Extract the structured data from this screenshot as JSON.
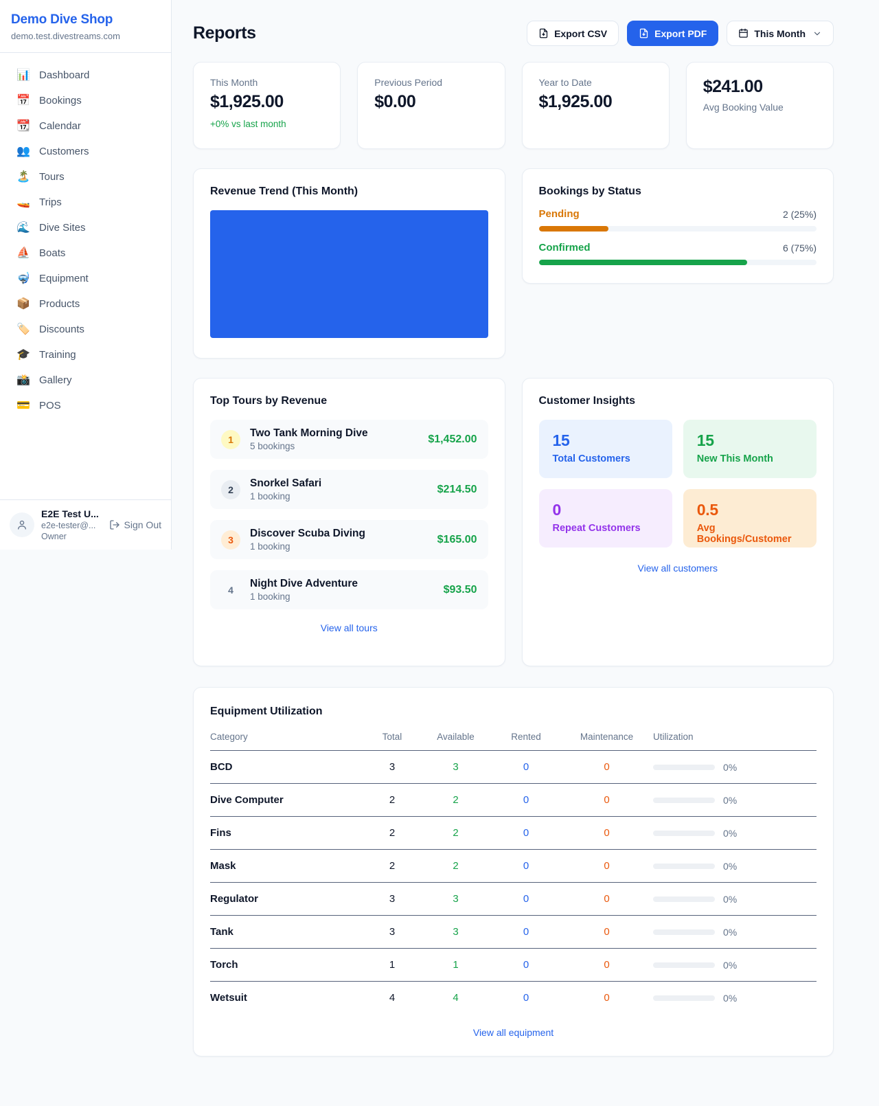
{
  "app": {
    "background": "#f8fafc",
    "accent": "#2563eb"
  },
  "sidebar": {
    "shop_name": "Demo Dive Shop",
    "shop_domain": "demo.test.divestreams.com",
    "items": [
      {
        "icon": "📊",
        "icon_name": "bar-chart-icon",
        "label": "Dashboard"
      },
      {
        "icon": "📅",
        "icon_name": "calendar-date-icon",
        "label": "Bookings"
      },
      {
        "icon": "📆",
        "icon_name": "tear-off-calendar-icon",
        "label": "Calendar"
      },
      {
        "icon": "👥",
        "icon_name": "people-icon",
        "label": "Customers"
      },
      {
        "icon": "🏝️",
        "icon_name": "island-icon",
        "label": "Tours"
      },
      {
        "icon": "🚤",
        "icon_name": "speedboat-icon",
        "label": "Trips"
      },
      {
        "icon": "🌊",
        "icon_name": "wave-icon",
        "label": "Dive Sites"
      },
      {
        "icon": "⛵",
        "icon_name": "sailboat-icon",
        "label": "Boats"
      },
      {
        "icon": "🤿",
        "icon_name": "diving-mask-icon",
        "label": "Equipment"
      },
      {
        "icon": "📦",
        "icon_name": "package-icon",
        "label": "Products"
      },
      {
        "icon": "🏷️",
        "icon_name": "tag-icon",
        "label": "Discounts"
      },
      {
        "icon": "🎓",
        "icon_name": "graduation-cap-icon",
        "label": "Training"
      },
      {
        "icon": "📸",
        "icon_name": "camera-icon",
        "label": "Gallery"
      },
      {
        "icon": "💳",
        "icon_name": "credit-card-icon",
        "label": "POS"
      }
    ],
    "user": {
      "name": "E2E Test U...",
      "email": "e2e-tester@...",
      "role": "Owner",
      "sign_out_label": "Sign Out"
    }
  },
  "header": {
    "title": "Reports",
    "export_csv_label": "Export CSV",
    "export_pdf_label": "Export PDF",
    "period_label": "This Month"
  },
  "stats": [
    {
      "label": "This Month",
      "value": "$1,925.00",
      "delta": "+0% vs last month"
    },
    {
      "label": "Previous Period",
      "value": "$0.00"
    },
    {
      "label": "Year to Date",
      "value": "$1,925.00"
    },
    {
      "label": "Avg Booking Value",
      "value": "$241.00",
      "value_first": true
    }
  ],
  "revenue_trend": {
    "title": "Revenue Trend (This Month)",
    "bar_color": "#2563eb"
  },
  "bookings_by_status": {
    "title": "Bookings by Status",
    "statuses": [
      {
        "label": "Pending",
        "count_text": "2 (25%)",
        "percent": 25,
        "color": "#d97706"
      },
      {
        "label": "Confirmed",
        "count_text": "6 (75%)",
        "percent": 75,
        "color": "#16a34a"
      }
    ]
  },
  "top_tours": {
    "title": "Top Tours by Revenue",
    "view_all_label": "View all tours",
    "tours": [
      {
        "rank": "1",
        "name": "Two Tank Morning Dive",
        "bookings": "5 bookings",
        "revenue": "$1,452.00",
        "badge_bg": "#fef9c3",
        "badge_color": "#d97706"
      },
      {
        "rank": "2",
        "name": "Snorkel Safari",
        "bookings": "1 booking",
        "revenue": "$214.50",
        "badge_bg": "#e9edf2",
        "badge_color": "#334155"
      },
      {
        "rank": "3",
        "name": "Discover Scuba Diving",
        "bookings": "1 booking",
        "revenue": "$165.00",
        "badge_bg": "#ffedd5",
        "badge_color": "#ea580c"
      },
      {
        "rank": "4",
        "name": "Night Dive Adventure",
        "bookings": "1 booking",
        "revenue": "$93.50",
        "badge_bg": "transparent",
        "badge_color": "#64748b"
      }
    ]
  },
  "customer_insights": {
    "title": "Customer Insights",
    "view_all_label": "View all customers",
    "tiles": [
      {
        "value": "15",
        "label": "Total Customers",
        "bg": "#eaf2fe",
        "color": "#2563eb"
      },
      {
        "value": "15",
        "label": "New This Month",
        "bg": "#e8f8ee",
        "color": "#16a34a"
      },
      {
        "value": "0",
        "label": "Repeat Customers",
        "bg": "#f6edfe",
        "color": "#9333ea"
      },
      {
        "value": "0.5",
        "label": "Avg Bookings/Customer",
        "bg": "#fdecd3",
        "color": "#ea580c"
      }
    ]
  },
  "equipment": {
    "title": "Equipment Utilization",
    "view_all_label": "View all equipment",
    "columns": [
      "Category",
      "Total",
      "Available",
      "Rented",
      "Maintenance",
      "Utilization"
    ],
    "value_colors": {
      "total": "#0f172a",
      "available": "#16a34a",
      "rented": "#2563eb",
      "maintenance": "#ea580c"
    },
    "rows": [
      {
        "category": "BCD",
        "total": "3",
        "available": "3",
        "rented": "0",
        "maintenance": "0",
        "utilization": "0%",
        "utilization_pct": 0
      },
      {
        "category": "Dive Computer",
        "total": "2",
        "available": "2",
        "rented": "0",
        "maintenance": "0",
        "utilization": "0%",
        "utilization_pct": 0
      },
      {
        "category": "Fins",
        "total": "2",
        "available": "2",
        "rented": "0",
        "maintenance": "0",
        "utilization": "0%",
        "utilization_pct": 0
      },
      {
        "category": "Mask",
        "total": "2",
        "available": "2",
        "rented": "0",
        "maintenance": "0",
        "utilization": "0%",
        "utilization_pct": 0
      },
      {
        "category": "Regulator",
        "total": "3",
        "available": "3",
        "rented": "0",
        "maintenance": "0",
        "utilization": "0%",
        "utilization_pct": 0
      },
      {
        "category": "Tank",
        "total": "3",
        "available": "3",
        "rented": "0",
        "maintenance": "0",
        "utilization": "0%",
        "utilization_pct": 0
      },
      {
        "category": "Torch",
        "total": "1",
        "available": "1",
        "rented": "0",
        "maintenance": "0",
        "utilization": "0%",
        "utilization_pct": 0
      },
      {
        "category": "Wetsuit",
        "total": "4",
        "available": "4",
        "rented": "0",
        "maintenance": "0",
        "utilization": "0%",
        "utilization_pct": 0
      }
    ]
  }
}
